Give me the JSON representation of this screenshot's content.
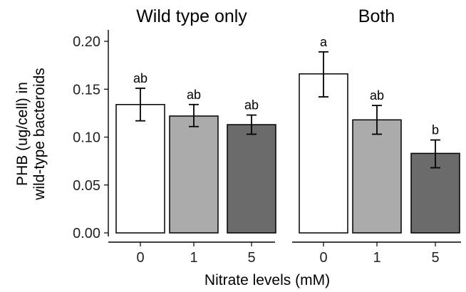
{
  "chart_data": {
    "type": "bar",
    "xlabel": "Nitrate levels (mM)",
    "ylabel_lines": [
      "PHB (ug/cell) in",
      "wild-type bacteroids"
    ],
    "ylim": [
      0,
      0.2
    ],
    "yticks": [
      "0.00",
      "0.05",
      "0.10",
      "0.15",
      "0.20"
    ],
    "ytick_values": [
      0,
      0.05,
      0.1,
      0.15,
      0.2
    ],
    "categories": [
      "0",
      "1",
      "5"
    ],
    "fill_colors": [
      "#ffffff",
      "#ababab",
      "#6b6b6b"
    ],
    "grid": false,
    "panels": [
      {
        "title": "Wild type only",
        "values": [
          0.134,
          0.122,
          0.113
        ],
        "err_low": [
          0.117,
          0.111,
          0.103
        ],
        "err_high": [
          0.151,
          0.134,
          0.123
        ],
        "sig_labels": [
          "ab",
          "ab",
          "ab"
        ]
      },
      {
        "title": "Both",
        "values": [
          0.166,
          0.118,
          0.083
        ],
        "err_low": [
          0.142,
          0.103,
          0.068
        ],
        "err_high": [
          0.189,
          0.133,
          0.097
        ],
        "sig_labels": [
          "a",
          "ab",
          "b"
        ]
      }
    ]
  }
}
